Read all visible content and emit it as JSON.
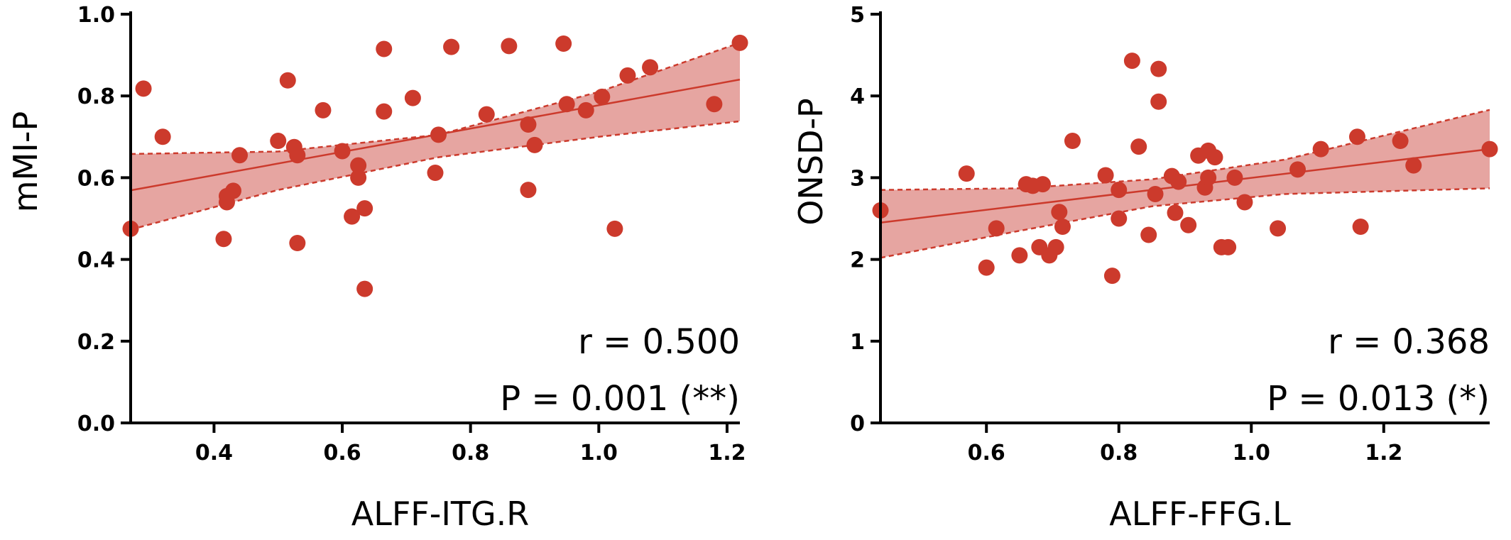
{
  "chart_data": [
    {
      "type": "scatter",
      "xlabel": "ALFF-ITG.R",
      "ylabel": "mMI-P",
      "xlim": [
        0.27,
        1.22
      ],
      "ylim": [
        0.0,
        1.0
      ],
      "xticks": [
        0.4,
        0.6,
        0.8,
        1.0,
        1.2
      ],
      "xtick_labels": [
        "0.4",
        "0.6",
        "0.8",
        "1.0",
        "1.2"
      ],
      "yticks": [
        0.0,
        0.2,
        0.4,
        0.6,
        0.8,
        1.0
      ],
      "ytick_labels": [
        "0.0",
        "0.2",
        "0.4",
        "0.6",
        "0.8",
        "1.0"
      ],
      "annotations": [
        "r  = 0.500",
        "P = 0.001 (**)"
      ],
      "color": "#cc3a2c",
      "band_color": "#e08f8a",
      "regression": {
        "x": [
          0.27,
          1.22
        ],
        "y": [
          0.569,
          0.84
        ]
      },
      "band_upper": {
        "x": [
          0.27,
          0.5,
          0.75,
          1.0,
          1.22
        ],
        "y": [
          0.658,
          0.664,
          0.705,
          0.81,
          0.93
        ]
      },
      "band_lower": {
        "x": [
          0.27,
          0.5,
          0.75,
          1.0,
          1.22
        ],
        "y": [
          0.473,
          0.57,
          0.65,
          0.7,
          0.738
        ]
      },
      "points": [
        [
          0.27,
          0.475
        ],
        [
          0.29,
          0.818
        ],
        [
          0.32,
          0.7
        ],
        [
          0.415,
          0.45
        ],
        [
          0.42,
          0.54
        ],
        [
          0.42,
          0.555
        ],
        [
          0.43,
          0.568
        ],
        [
          0.44,
          0.655
        ],
        [
          0.5,
          0.69
        ],
        [
          0.515,
          0.838
        ],
        [
          0.525,
          0.675
        ],
        [
          0.53,
          0.655
        ],
        [
          0.53,
          0.44
        ],
        [
          0.57,
          0.765
        ],
        [
          0.6,
          0.665
        ],
        [
          0.615,
          0.505
        ],
        [
          0.625,
          0.63
        ],
        [
          0.625,
          0.6
        ],
        [
          0.635,
          0.525
        ],
        [
          0.635,
          0.328
        ],
        [
          0.665,
          0.915
        ],
        [
          0.665,
          0.762
        ],
        [
          0.71,
          0.795
        ],
        [
          0.745,
          0.612
        ],
        [
          0.75,
          0.705
        ],
        [
          0.77,
          0.92
        ],
        [
          0.825,
          0.755
        ],
        [
          0.86,
          0.922
        ],
        [
          0.89,
          0.73
        ],
        [
          0.89,
          0.57
        ],
        [
          0.9,
          0.68
        ],
        [
          0.945,
          0.928
        ],
        [
          0.95,
          0.78
        ],
        [
          0.98,
          0.765
        ],
        [
          1.005,
          0.798
        ],
        [
          1.025,
          0.475
        ],
        [
          1.045,
          0.85
        ],
        [
          1.08,
          0.87
        ],
        [
          1.18,
          0.78
        ],
        [
          1.22,
          0.93
        ]
      ]
    },
    {
      "type": "scatter",
      "xlabel": "ALFF-FFG.L",
      "ylabel": "ONSD-P",
      "xlim": [
        0.44,
        1.36
      ],
      "ylim": [
        0,
        5
      ],
      "xticks": [
        0.6,
        0.8,
        1.0,
        1.2
      ],
      "xtick_labels": [
        "0.6",
        "0.8",
        "1.0",
        "1.2"
      ],
      "yticks": [
        0,
        1,
        2,
        3,
        4,
        5
      ],
      "ytick_labels": [
        "0",
        "1",
        "2",
        "3",
        "4",
        "5"
      ],
      "annotations": [
        "r  = 0.368",
        "P = 0.013 (*)"
      ],
      "color": "#cc3a2c",
      "band_color": "#e08f8a",
      "regression": {
        "x": [
          0.44,
          1.36
        ],
        "y": [
          2.45,
          3.35
        ]
      },
      "band_upper": {
        "x": [
          0.44,
          0.65,
          0.85,
          1.05,
          1.36
        ],
        "y": [
          2.85,
          2.87,
          2.98,
          3.22,
          3.83
        ]
      },
      "band_lower": {
        "x": [
          0.44,
          0.65,
          0.85,
          1.05,
          1.36
        ],
        "y": [
          2.02,
          2.35,
          2.65,
          2.8,
          2.87
        ]
      },
      "points": [
        [
          0.44,
          2.6
        ],
        [
          0.57,
          3.05
        ],
        [
          0.6,
          1.9
        ],
        [
          0.615,
          2.38
        ],
        [
          0.65,
          2.05
        ],
        [
          0.66,
          2.92
        ],
        [
          0.67,
          2.9
        ],
        [
          0.68,
          2.15
        ],
        [
          0.685,
          2.92
        ],
        [
          0.695,
          2.05
        ],
        [
          0.705,
          2.15
        ],
        [
          0.71,
          2.58
        ],
        [
          0.715,
          2.4
        ],
        [
          0.73,
          3.45
        ],
        [
          0.78,
          3.03
        ],
        [
          0.79,
          1.8
        ],
        [
          0.8,
          2.85
        ],
        [
          0.8,
          2.5
        ],
        [
          0.82,
          4.43
        ],
        [
          0.83,
          3.38
        ],
        [
          0.845,
          2.3
        ],
        [
          0.855,
          2.8
        ],
        [
          0.86,
          4.33
        ],
        [
          0.86,
          3.93
        ],
        [
          0.88,
          3.02
        ],
        [
          0.885,
          2.57
        ],
        [
          0.89,
          2.95
        ],
        [
          0.905,
          2.42
        ],
        [
          0.92,
          3.27
        ],
        [
          0.93,
          2.88
        ],
        [
          0.935,
          3.33
        ],
        [
          0.935,
          3.0
        ],
        [
          0.945,
          3.25
        ],
        [
          0.955,
          2.15
        ],
        [
          0.965,
          2.15
        ],
        [
          0.975,
          3.0
        ],
        [
          0.99,
          2.7
        ],
        [
          1.04,
          2.38
        ],
        [
          1.07,
          3.1
        ],
        [
          1.105,
          3.35
        ],
        [
          1.16,
          3.5
        ],
        [
          1.165,
          2.4
        ],
        [
          1.225,
          3.45
        ],
        [
          1.245,
          3.15
        ],
        [
          1.36,
          3.35
        ]
      ]
    }
  ]
}
